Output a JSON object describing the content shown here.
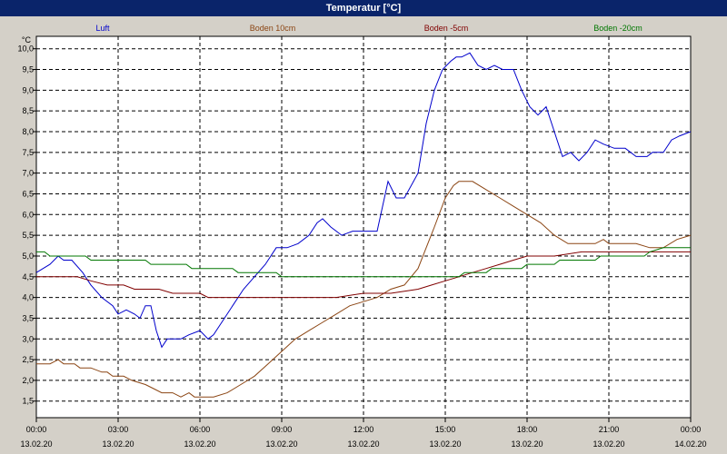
{
  "window": {
    "title": "Temperatur [°C]"
  },
  "chart_data": {
    "type": "line",
    "title": "Temperatur [°C]",
    "ylabel": "°C",
    "xlabel": "",
    "ylim": [
      1.1,
      10.3
    ],
    "xlim": [
      0,
      24
    ],
    "grid": true,
    "legend_position": "top",
    "y_ticks": [
      "1,5",
      "2,0",
      "2,5",
      "3,0",
      "3,5",
      "4,0",
      "4,5",
      "5,0",
      "5,5",
      "6,0",
      "6,5",
      "7,0",
      "7,5",
      "8,0",
      "8,5",
      "9,0",
      "9,5",
      "10,0"
    ],
    "y_tick_values": [
      1.5,
      2.0,
      2.5,
      3.0,
      3.5,
      4.0,
      4.5,
      5.0,
      5.5,
      6.0,
      6.5,
      7.0,
      7.5,
      8.0,
      8.5,
      9.0,
      9.5,
      10.0
    ],
    "x_ticks": [
      {
        "time": "00:00",
        "date": "13.02.20",
        "hour": 0
      },
      {
        "time": "03:00",
        "date": "13.02.20",
        "hour": 3
      },
      {
        "time": "06:00",
        "date": "13.02.20",
        "hour": 6
      },
      {
        "time": "09:00",
        "date": "13.02.20",
        "hour": 9
      },
      {
        "time": "12:00",
        "date": "13.02.20",
        "hour": 12
      },
      {
        "time": "15:00",
        "date": "13.02.20",
        "hour": 15
      },
      {
        "time": "18:00",
        "date": "13.02.20",
        "hour": 18
      },
      {
        "time": "21:00",
        "date": "13.02.20",
        "hour": 21
      },
      {
        "time": "00:00",
        "date": "14.02.20",
        "hour": 24
      }
    ],
    "series": [
      {
        "name": "Luft",
        "color": "#0000cc",
        "points": [
          [
            0,
            4.6
          ],
          [
            0.5,
            4.8
          ],
          [
            0.8,
            5.0
          ],
          [
            1.0,
            4.9
          ],
          [
            1.3,
            4.9
          ],
          [
            1.7,
            4.6
          ],
          [
            2.0,
            4.3
          ],
          [
            2.4,
            4.0
          ],
          [
            2.8,
            3.8
          ],
          [
            3.0,
            3.6
          ],
          [
            3.3,
            3.7
          ],
          [
            3.6,
            3.6
          ],
          [
            3.8,
            3.5
          ],
          [
            4.0,
            3.8
          ],
          [
            4.2,
            3.8
          ],
          [
            4.4,
            3.2
          ],
          [
            4.6,
            2.8
          ],
          [
            4.8,
            3.0
          ],
          [
            5.3,
            3.0
          ],
          [
            5.6,
            3.1
          ],
          [
            6.0,
            3.2
          ],
          [
            6.3,
            3.0
          ],
          [
            6.5,
            3.1
          ],
          [
            6.8,
            3.4
          ],
          [
            7.2,
            3.8
          ],
          [
            7.6,
            4.2
          ],
          [
            8.0,
            4.5
          ],
          [
            8.4,
            4.8
          ],
          [
            8.8,
            5.2
          ],
          [
            9.2,
            5.2
          ],
          [
            9.6,
            5.3
          ],
          [
            10.0,
            5.5
          ],
          [
            10.3,
            5.8
          ],
          [
            10.5,
            5.9
          ],
          [
            10.8,
            5.7
          ],
          [
            11.2,
            5.5
          ],
          [
            11.6,
            5.6
          ],
          [
            12.2,
            5.6
          ],
          [
            12.5,
            5.6
          ],
          [
            12.9,
            6.8
          ],
          [
            13.2,
            6.4
          ],
          [
            13.5,
            6.4
          ],
          [
            14.0,
            7.0
          ],
          [
            14.3,
            8.2
          ],
          [
            14.6,
            9.0
          ],
          [
            14.9,
            9.5
          ],
          [
            15.2,
            9.7
          ],
          [
            15.4,
            9.8
          ],
          [
            15.6,
            9.8
          ],
          [
            15.9,
            9.9
          ],
          [
            16.2,
            9.6
          ],
          [
            16.5,
            9.5
          ],
          [
            16.8,
            9.6
          ],
          [
            17.1,
            9.5
          ],
          [
            17.5,
            9.5
          ],
          [
            17.8,
            9.0
          ],
          [
            18.1,
            8.6
          ],
          [
            18.4,
            8.4
          ],
          [
            18.7,
            8.6
          ],
          [
            19.0,
            8.0
          ],
          [
            19.3,
            7.4
          ],
          [
            19.6,
            7.5
          ],
          [
            19.9,
            7.3
          ],
          [
            20.2,
            7.5
          ],
          [
            20.5,
            7.8
          ],
          [
            20.8,
            7.7
          ],
          [
            21.2,
            7.6
          ],
          [
            21.6,
            7.6
          ],
          [
            22.0,
            7.4
          ],
          [
            22.4,
            7.4
          ],
          [
            22.6,
            7.5
          ],
          [
            23.0,
            7.5
          ],
          [
            23.3,
            7.8
          ],
          [
            23.6,
            7.9
          ],
          [
            24.0,
            8.0
          ]
        ]
      },
      {
        "name": "Boden 10cm",
        "color": "#8b4513",
        "points": [
          [
            0,
            2.4
          ],
          [
            0.5,
            2.4
          ],
          [
            0.8,
            2.5
          ],
          [
            1.0,
            2.4
          ],
          [
            1.4,
            2.4
          ],
          [
            1.6,
            2.3
          ],
          [
            2.0,
            2.3
          ],
          [
            2.4,
            2.2
          ],
          [
            2.6,
            2.2
          ],
          [
            2.8,
            2.1
          ],
          [
            3.2,
            2.1
          ],
          [
            3.5,
            2.0
          ],
          [
            4.0,
            1.9
          ],
          [
            4.3,
            1.8
          ],
          [
            4.6,
            1.7
          ],
          [
            5.0,
            1.7
          ],
          [
            5.3,
            1.6
          ],
          [
            5.6,
            1.7
          ],
          [
            5.8,
            1.6
          ],
          [
            6.5,
            1.6
          ],
          [
            7.0,
            1.7
          ],
          [
            7.5,
            1.9
          ],
          [
            8.0,
            2.1
          ],
          [
            8.5,
            2.4
          ],
          [
            9.0,
            2.7
          ],
          [
            9.5,
            3.0
          ],
          [
            10.0,
            3.2
          ],
          [
            10.5,
            3.4
          ],
          [
            11.0,
            3.6
          ],
          [
            11.5,
            3.8
          ],
          [
            12.0,
            3.9
          ],
          [
            12.5,
            4.0
          ],
          [
            13.0,
            4.2
          ],
          [
            13.5,
            4.3
          ],
          [
            14.0,
            4.7
          ],
          [
            14.3,
            5.2
          ],
          [
            14.6,
            5.7
          ],
          [
            15.0,
            6.4
          ],
          [
            15.3,
            6.7
          ],
          [
            15.5,
            6.8
          ],
          [
            16.0,
            6.8
          ],
          [
            16.5,
            6.6
          ],
          [
            17.0,
            6.4
          ],
          [
            17.5,
            6.2
          ],
          [
            18.0,
            6.0
          ],
          [
            18.5,
            5.8
          ],
          [
            19.0,
            5.5
          ],
          [
            19.5,
            5.3
          ],
          [
            20.0,
            5.3
          ],
          [
            20.5,
            5.3
          ],
          [
            20.8,
            5.4
          ],
          [
            21.0,
            5.3
          ],
          [
            21.5,
            5.3
          ],
          [
            22.0,
            5.3
          ],
          [
            22.5,
            5.2
          ],
          [
            23.0,
            5.2
          ],
          [
            23.5,
            5.4
          ],
          [
            24.0,
            5.5
          ]
        ]
      },
      {
        "name": "Boden -5cm",
        "color": "#800000",
        "points": [
          [
            0,
            4.5
          ],
          [
            0.5,
            4.5
          ],
          [
            1.5,
            4.5
          ],
          [
            2.0,
            4.4
          ],
          [
            2.6,
            4.3
          ],
          [
            3.2,
            4.3
          ],
          [
            3.6,
            4.2
          ],
          [
            4.5,
            4.2
          ],
          [
            5.0,
            4.1
          ],
          [
            6.0,
            4.1
          ],
          [
            6.3,
            4.0
          ],
          [
            8.0,
            4.0
          ],
          [
            9.0,
            4.0
          ],
          [
            10.0,
            4.0
          ],
          [
            11.0,
            4.0
          ],
          [
            12.0,
            4.1
          ],
          [
            13.0,
            4.1
          ],
          [
            14.0,
            4.2
          ],
          [
            14.5,
            4.3
          ],
          [
            15.0,
            4.4
          ],
          [
            15.5,
            4.5
          ],
          [
            16.0,
            4.6
          ],
          [
            16.5,
            4.7
          ],
          [
            17.0,
            4.8
          ],
          [
            17.5,
            4.9
          ],
          [
            18.0,
            5.0
          ],
          [
            19.0,
            5.0
          ],
          [
            20.0,
            5.1
          ],
          [
            22.0,
            5.1
          ],
          [
            24.0,
            5.1
          ]
        ]
      },
      {
        "name": "Boden -20cm",
        "color": "#007700",
        "points": [
          [
            0,
            5.1
          ],
          [
            0.3,
            5.1
          ],
          [
            0.5,
            5.0
          ],
          [
            1.8,
            5.0
          ],
          [
            2.0,
            4.9
          ],
          [
            4.0,
            4.9
          ],
          [
            4.2,
            4.8
          ],
          [
            5.5,
            4.8
          ],
          [
            5.7,
            4.7
          ],
          [
            7.2,
            4.7
          ],
          [
            7.4,
            4.6
          ],
          [
            8.8,
            4.6
          ],
          [
            9.0,
            4.5
          ],
          [
            13.0,
            4.5
          ],
          [
            14.5,
            4.5
          ],
          [
            15.5,
            4.5
          ],
          [
            15.7,
            4.6
          ],
          [
            16.5,
            4.6
          ],
          [
            16.7,
            4.7
          ],
          [
            17.8,
            4.7
          ],
          [
            18.0,
            4.8
          ],
          [
            19.0,
            4.8
          ],
          [
            19.2,
            4.9
          ],
          [
            20.5,
            4.9
          ],
          [
            20.7,
            5.0
          ],
          [
            22.3,
            5.0
          ],
          [
            22.5,
            5.1
          ],
          [
            23.0,
            5.2
          ],
          [
            24.0,
            5.2
          ]
        ]
      }
    ]
  }
}
